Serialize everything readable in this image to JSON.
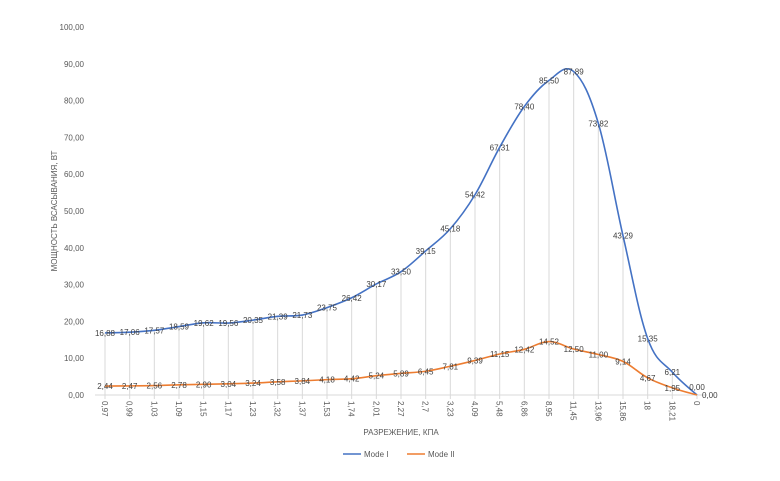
{
  "chart_data": {
    "type": "line",
    "title": "",
    "xlabel": "РАЗРЕЖЕНИЕ, КПА",
    "ylabel": "МОЩНОСТЬ ВСАСЫВАНИЯ, ВТ",
    "ylim": [
      0,
      100
    ],
    "yticks": [
      "0,00",
      "10,00",
      "20,00",
      "30,00",
      "40,00",
      "50,00",
      "60,00",
      "70,00",
      "80,00",
      "90,00",
      "100,00"
    ],
    "categories": [
      "0,97",
      "0,99",
      "1,03",
      "1,09",
      "1,15",
      "1,17",
      "1,23",
      "1,32",
      "1,37",
      "1,53",
      "1,74",
      "2,01",
      "2,27",
      "2,7",
      "3,23",
      "4,09",
      "5,48",
      "6,86",
      "8,95",
      "11,45",
      "13,96",
      "15,86",
      "18",
      "18,21",
      "0"
    ],
    "series": [
      {
        "name": "Mode I",
        "color": "#4472C4",
        "values": [
          16.88,
          17.06,
          17.57,
          18.59,
          19.62,
          19.56,
          20.35,
          21.39,
          21.73,
          23.75,
          26.42,
          30.17,
          33.5,
          39.15,
          45.18,
          54.42,
          67.31,
          78.4,
          85.5,
          87.89,
          73.82,
          43.29,
          15.35,
          6.21,
          0.0
        ]
      },
      {
        "name": "Mode II",
        "color": "#ED7D31",
        "values": [
          2.44,
          2.47,
          2.56,
          2.78,
          2.9,
          3.04,
          3.24,
          3.58,
          3.84,
          4.18,
          4.42,
          5.24,
          5.89,
          6.45,
          7.81,
          9.39,
          11.15,
          12.42,
          14.52,
          12.5,
          11.0,
          9.14,
          4.67,
          1.95,
          0.0
        ]
      }
    ],
    "data_labels": true,
    "drop_lines": true,
    "grid": false,
    "legend": "bottom"
  }
}
